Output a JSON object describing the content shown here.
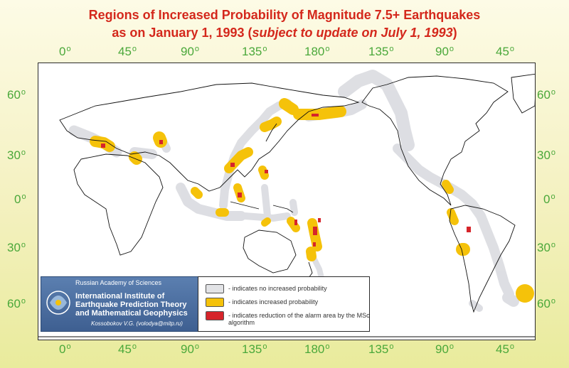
{
  "title": {
    "line1": "Regions of Increased Probability of Magnitude 7.5+ Earthquakes",
    "line2_main": "as on January 1, 1993 (",
    "line2_italic": "subject to update on July 1, 1993",
    "line2_end": ")"
  },
  "longitude_labels": [
    "0",
    "45",
    "90",
    "135",
    "180",
    "135",
    "90",
    "45"
  ],
  "degree_symbol": "o",
  "latitude_labels": [
    "60",
    "30",
    "0",
    "30",
    "60"
  ],
  "map": {
    "land_color": "#ffffff",
    "outline_color": "#000000",
    "no_increase_color": "#dcdde2",
    "increased_color": "#f5c20a",
    "reduction_color": "#d6242a"
  },
  "institute": {
    "academy": "Russian Academy of Sciences",
    "name": "International Institute of Earthquake Prediction Theory and Mathematical Geophysics",
    "author": "Kossobokov V.G. (volodya@mitp.ru)"
  },
  "legend": [
    {
      "color": "#e2e3e6",
      "text": "- indicates no increased probability"
    },
    {
      "color": "#f5c20a",
      "text": "- indicates increased probability"
    },
    {
      "color": "#d6242a",
      "text": "- indicates reduction of the alarm area by the MSc algorithm"
    }
  ]
}
